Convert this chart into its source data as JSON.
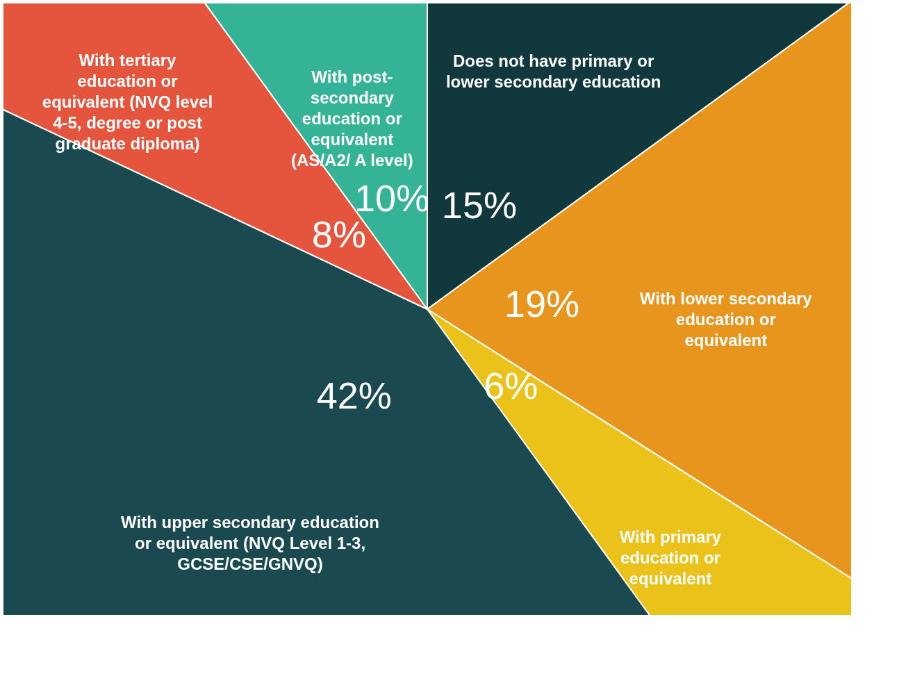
{
  "chart_data": {
    "type": "pie",
    "categories": [
      "Does not have primary or lower secondary education",
      "With lower secondary education or equivalent",
      "With primary education or equivalent",
      "With upper secondary education or equivalent (NVQ Level 1-3, GCSE/CSE/GNVQ)",
      "With tertiary education or equivalent (NVQ level 4-5, degree or post graduate diploma)",
      "With post-secondary education or equivalent (AS/A2/ A level)"
    ],
    "values": [
      15,
      19,
      6,
      42,
      8,
      10
    ],
    "colors": [
      "#10383d",
      "#e8951e",
      "#eac219",
      "#1a4a50",
      "#e5553e",
      "#35b396"
    ],
    "value_labels": [
      "15%",
      "19%",
      "6%",
      "42%",
      "8%",
      "10%"
    ],
    "legend": false
  }
}
